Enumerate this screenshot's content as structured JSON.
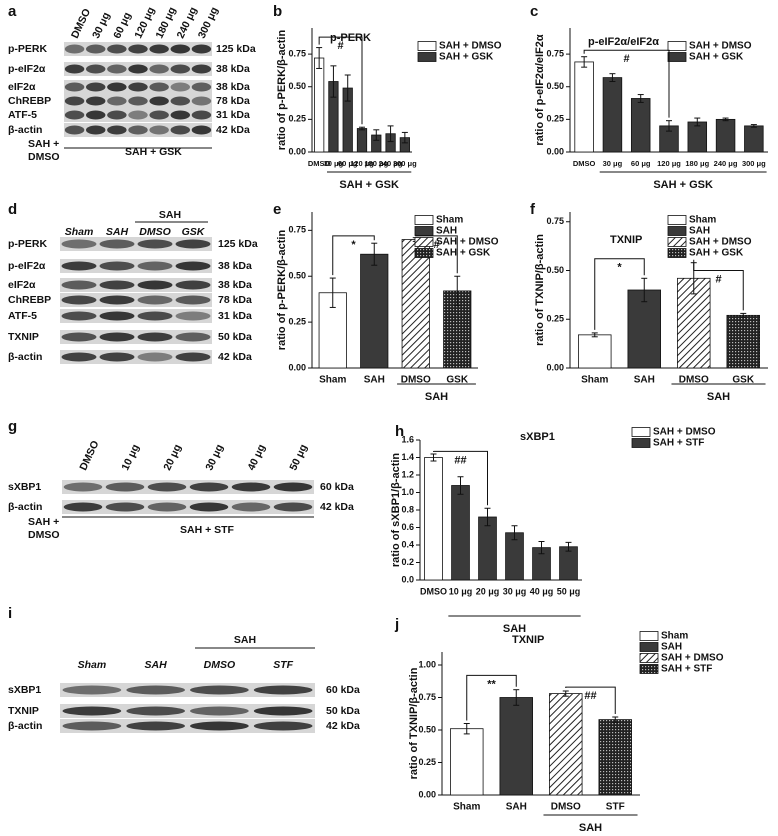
{
  "blots": [
    {
      "letter": "a",
      "lanes": [
        "DMSO",
        "30 μg",
        "60 μg",
        "120 μg",
        "180 μg",
        "240 μg",
        "300 μg"
      ],
      "rows": [
        {
          "label": "p-PERK",
          "kda": "125 kDa"
        },
        {
          "label": "p-eIF2α",
          "kda": "38 kDa"
        },
        {
          "label": "eIF2α",
          "kda": "38 kDa"
        },
        {
          "label": "ChREBP",
          "kda": "78 kDa"
        },
        {
          "label": "ATF-5",
          "kda": "31 kDa"
        },
        {
          "label": "β-actin",
          "kda": "42 kDa"
        }
      ],
      "footer": [
        "SAH +",
        "DMSO",
        "SAH + GSK"
      ]
    },
    {
      "letter": "d",
      "lanes": [
        "Sham",
        "SAH",
        "DMSO",
        "GSK"
      ],
      "header": "SAH",
      "rows": [
        {
          "label": "p-PERK",
          "kda": "125 kDa"
        },
        {
          "label": "p-eIF2α",
          "kda": "38 kDa"
        },
        {
          "label": "eIF2α",
          "kda": "38 kDa"
        },
        {
          "label": "ChREBP",
          "kda": "78 kDa"
        },
        {
          "label": "ATF-5",
          "kda": "31 kDa"
        },
        {
          "label": "TXNIP",
          "kda": "50 kDa"
        },
        {
          "label": "β-actin",
          "kda": "42 kDa"
        }
      ]
    },
    {
      "letter": "g",
      "lanes": [
        "DMSO",
        "10 μg",
        "20 μg",
        "30 μg",
        "40 μg",
        "50 μg"
      ],
      "rows": [
        {
          "label": "sXBP1",
          "kda": "60 kDa"
        },
        {
          "label": "β-actin",
          "kda": "42 kDa"
        }
      ],
      "footer": [
        "SAH +",
        "DMSO",
        "SAH + STF"
      ]
    },
    {
      "letter": "i",
      "lanes": [
        "Sham",
        "SAH",
        "DMSO",
        "STF"
      ],
      "header": "SAH",
      "rows": [
        {
          "label": "sXBP1",
          "kda": "60 kDa"
        },
        {
          "label": "TXNIP",
          "kda": "50 kDa"
        },
        {
          "label": "β-actin",
          "kda": "42 kDa"
        }
      ]
    }
  ],
  "chart_data": [
    {
      "type": "bar",
      "letter": "b",
      "title": "p-PERK",
      "y_label": "ratio of p-PERK/β-actin",
      "categories": [
        "DMSO",
        "30 μg",
        "60 μg",
        "120 μg",
        "180 μg",
        "240 μg",
        "300 μg"
      ],
      "values": [
        0.72,
        0.54,
        0.49,
        0.18,
        0.13,
        0.14,
        0.11
      ],
      "errors": [
        0.08,
        0.12,
        0.1,
        0.01,
        0.04,
        0.06,
        0.04
      ],
      "fills": [
        "#ffffff",
        "#3a3a3a",
        "#3a3a3a",
        "#3a3a3a",
        "#3a3a3a",
        "#3a3a3a",
        "#3a3a3a"
      ],
      "legend": [
        {
          "name": "SAH + DMSO",
          "fill": "#ffffff"
        },
        {
          "name": "SAH + GSK",
          "fill": "#3a3a3a"
        }
      ],
      "group_label": "SAH + GSK",
      "annotations": [
        "#"
      ],
      "ylim": [
        0,
        0.95
      ],
      "yticks": [
        {
          "value": 0,
          "label": "0.00"
        },
        0.25,
        {
          "value": 0.5,
          "label": "0.50"
        },
        0.75
      ]
    },
    {
      "type": "bar",
      "letter": "c",
      "title": "p-eIF2α/eIF2α",
      "y_label": "ratio of p-eIF2α/eIF2α",
      "categories": [
        "DMSO",
        "30 μg",
        "60 μg",
        "120 μg",
        "180 μg",
        "240 μg",
        "300 μg"
      ],
      "values": [
        0.69,
        0.57,
        0.41,
        0.2,
        0.23,
        0.25,
        0.2
      ],
      "errors": [
        0.04,
        0.03,
        0.03,
        0.04,
        0.03,
        0.01,
        0.01
      ],
      "fills": [
        "#ffffff",
        "#3a3a3a",
        "#3a3a3a",
        "#3a3a3a",
        "#3a3a3a",
        "#3a3a3a",
        "#3a3a3a"
      ],
      "legend": [
        {
          "name": "SAH + DMSO",
          "fill": "#ffffff"
        },
        {
          "name": "SAH + GSK",
          "fill": "#3a3a3a"
        }
      ],
      "group_label": "SAH + GSK",
      "annotations": [
        "#"
      ],
      "ylim": [
        0,
        0.95
      ],
      "yticks": [
        {
          "value": 0,
          "label": "0.00"
        },
        0.25,
        {
          "value": 0.5,
          "label": "0.50"
        },
        0.75
      ]
    },
    {
      "type": "bar",
      "letter": "e",
      "y_label": "ratio of p-PERK/β-actin",
      "categories": [
        "Sham",
        "SAH",
        "DMSO",
        "GSK"
      ],
      "values": [
        0.41,
        0.62,
        0.7,
        0.42
      ],
      "errors": [
        0.08,
        0.06,
        0.01,
        0.08
      ],
      "fills": [
        "#ffffff",
        "#3a3a3a",
        "hatch",
        "dots"
      ],
      "legend": [
        {
          "name": "Sham",
          "fill": "#ffffff"
        },
        {
          "name": "SAH",
          "fill": "#3a3a3a"
        },
        {
          "name": "SAH + DMSO",
          "fill": "hatch"
        },
        {
          "name": "SAH + GSK",
          "fill": "dots"
        }
      ],
      "group_label": "SAH",
      "annotations": [
        "*",
        "#"
      ],
      "ylim": [
        0,
        0.85
      ],
      "yticks": [
        {
          "value": 0,
          "label": "0.00"
        },
        0.25,
        {
          "value": 0.5,
          "label": "0.50"
        },
        0.75
      ]
    },
    {
      "type": "bar",
      "letter": "f",
      "title": "TXNIP",
      "y_label": "ratio of TXNIP/β-actin",
      "categories": [
        "Sham",
        "SAH",
        "DMSO",
        "GSK"
      ],
      "values": [
        0.17,
        0.4,
        0.46,
        0.27
      ],
      "errors": [
        0.01,
        0.06,
        0.08,
        0.01
      ],
      "fills": [
        "#ffffff",
        "#3a3a3a",
        "hatch",
        "dots"
      ],
      "legend": [
        {
          "name": "Sham",
          "fill": "#ffffff"
        },
        {
          "name": "SAH",
          "fill": "#3a3a3a"
        },
        {
          "name": "SAH + DMSO",
          "fill": "hatch"
        },
        {
          "name": "SAH + GSK",
          "fill": "dots"
        }
      ],
      "group_label": "SAH",
      "annotations": [
        "*",
        "#"
      ],
      "ylim": [
        0,
        0.8
      ],
      "yticks": [
        {
          "value": 0,
          "label": "0.00"
        },
        0.25,
        {
          "value": 0.5,
          "label": "0.50"
        },
        0.75
      ]
    },
    {
      "type": "bar",
      "letter": "h",
      "title": "sXBP1",
      "y_label": "ratio of sXBP1/β-actin",
      "categories": [
        "DMSO",
        "10 μg",
        "20 μg",
        "30 μg",
        "40 μg",
        "50 μg"
      ],
      "values": [
        1.4,
        1.08,
        0.72,
        0.54,
        0.37,
        0.38
      ],
      "errors": [
        0.04,
        0.1,
        0.1,
        0.08,
        0.07,
        0.05
      ],
      "fills": [
        "#ffffff",
        "#3a3a3a",
        "#3a3a3a",
        "#3a3a3a",
        "#3a3a3a",
        "#3a3a3a"
      ],
      "legend": [
        {
          "name": "SAH + DMSO",
          "fill": "#ffffff"
        },
        {
          "name": "SAH + STF",
          "fill": "#3a3a3a"
        }
      ],
      "group_label": "SAH",
      "annotations": [
        "##"
      ],
      "ylim": [
        0,
        1.6
      ],
      "yticks": [
        {
          "value": 0,
          "label": "0.0"
        },
        0.2,
        0.4,
        0.6,
        0.8,
        {
          "value": 1,
          "label": "1.0"
        },
        1.2,
        1.4,
        1.6
      ]
    },
    {
      "type": "bar",
      "letter": "j",
      "title": "TXNIP",
      "y_label": "ratio of TXNIP/β-actin",
      "categories": [
        "Sham",
        "SAH",
        "DMSO",
        "STF"
      ],
      "values": [
        0.51,
        0.75,
        0.78,
        0.58
      ],
      "errors": [
        0.04,
        0.06,
        0.02,
        0.02
      ],
      "fills": [
        "#ffffff",
        "#3a3a3a",
        "hatch",
        "dots"
      ],
      "legend": [
        {
          "name": "Sham",
          "fill": "#ffffff"
        },
        {
          "name": "SAH",
          "fill": "#3a3a3a"
        },
        {
          "name": "SAH + DMSO",
          "fill": "hatch"
        },
        {
          "name": "SAH + STF",
          "fill": "dots"
        }
      ],
      "group_label": "SAH",
      "annotations": [
        "**",
        "##"
      ],
      "ylim": [
        0,
        1.1
      ],
      "yticks": [
        {
          "value": 0,
          "label": "0.00"
        },
        0.25,
        {
          "value": 0.5,
          "label": "0.50"
        },
        0.75,
        {
          "value": 1,
          "label": "1.00"
        }
      ]
    }
  ]
}
